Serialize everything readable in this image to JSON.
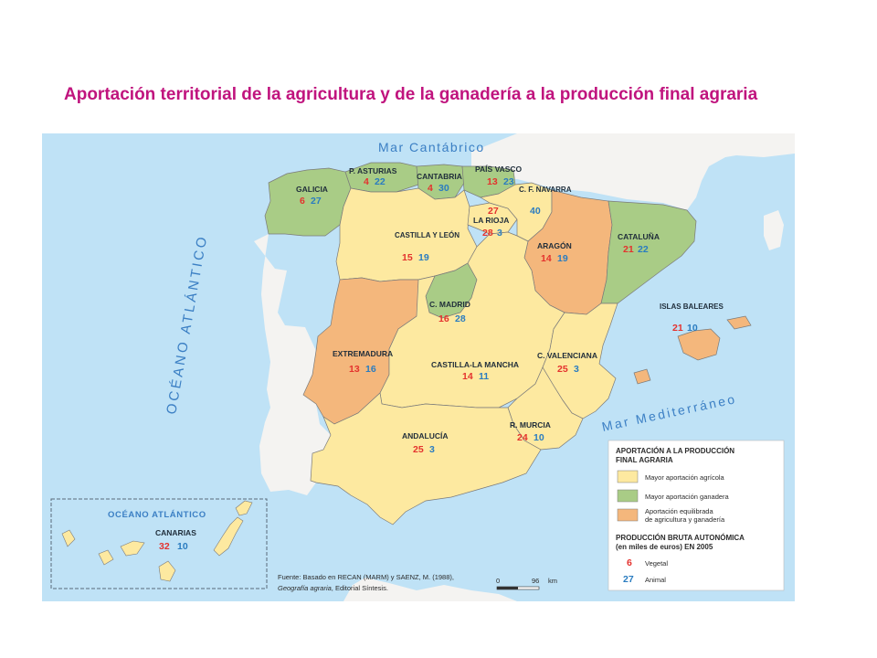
{
  "title": "Aportación territorial de la agricultura y de la ganadería a la producción final agraria",
  "colors": {
    "sea": "#bfe2f6",
    "land_other": "#f4f3f1",
    "agricola": "#fde9a0",
    "ganadera": "#a9cc86",
    "equilibrada": "#f4b77c",
    "vegetal": "#e4322e",
    "animal": "#2a7cc0"
  },
  "seas": {
    "cantabrico": "Mar Cantábrico",
    "atlantico": "OCÉANO ATLÁNTICO",
    "mediterraneo": "Mar Mediterráneo",
    "atlantico_inset": "OCÉANO ATLÁNTICO"
  },
  "regions": [
    {
      "name": "GALICIA",
      "vegetal": "6",
      "animal": "27",
      "category": "ganadera"
    },
    {
      "name": "P. ASTURIAS",
      "vegetal": "4",
      "animal": "22",
      "category": "ganadera"
    },
    {
      "name": "CANTABRIA",
      "vegetal": "4",
      "animal": "30",
      "category": "ganadera"
    },
    {
      "name": "PAÍS VASCO",
      "vegetal": "13",
      "animal": "23",
      "category": "ganadera"
    },
    {
      "name": "C. F. NAVARRA",
      "vegetal": "27",
      "animal": "40",
      "category": "agricola"
    },
    {
      "name": "LA RIOJA",
      "vegetal": "28",
      "animal": "3",
      "category": "agricola"
    },
    {
      "name": "CASTILLA Y LEÓN",
      "vegetal": "15",
      "animal": "19",
      "category": "equilibrada"
    },
    {
      "name": "ARAGÓN",
      "vegetal": "14",
      "animal": "19",
      "category": "equilibrada"
    },
    {
      "name": "CATALUÑA",
      "vegetal": "21",
      "animal": "22",
      "category": "ganadera"
    },
    {
      "name": "C. MADRID",
      "vegetal": "16",
      "animal": "28",
      "category": "ganadera"
    },
    {
      "name": "ISLAS BALEARES",
      "vegetal": "21",
      "animal": "10",
      "category": "agricola"
    },
    {
      "name": "EXTREMADURA",
      "vegetal": "13",
      "animal": "16",
      "category": "equilibrada"
    },
    {
      "name": "CASTILLA-LA MANCHA",
      "vegetal": "14",
      "animal": "11",
      "category": "agricola"
    },
    {
      "name": "C. VALENCIANA",
      "vegetal": "25",
      "animal": "3",
      "category": "agricola"
    },
    {
      "name": "R. MURCIA",
      "vegetal": "24",
      "animal": "10",
      "category": "agricola"
    },
    {
      "name": "ANDALUCÍA",
      "vegetal": "25",
      "animal": "3",
      "category": "agricola"
    },
    {
      "name": "CANARIAS",
      "vegetal": "32",
      "animal": "10",
      "category": "agricola"
    }
  ],
  "legend": {
    "title_line1": "APORTACIÓN A LA PRODUCCIÓN",
    "title_line2": "FINAL AGRARIA",
    "cat_agricola": "Mayor aportación agrícola",
    "cat_ganadera": "Mayor aportación ganadera",
    "cat_equilibrada_line1": "Aportación equilibrada",
    "cat_equilibrada_line2": "de agricultura y ganadería",
    "prod_line1": "PRODUCCIÓN BRUTA AUTONÓMICA",
    "prod_line2": "(en miles de euros) EN 2005",
    "vegetal_value": "6",
    "vegetal_label": "Vegetal",
    "animal_value": "27",
    "animal_label": "Animal"
  },
  "source": {
    "line1": "Fuente: Basado en RECAN (MARM) y SAENZ, M. (1988),",
    "line2_italic": "Geografía agraria",
    "line2_rest": ", Editorial Síntesis."
  },
  "scale": {
    "start": "0",
    "end": "96",
    "unit": "km"
  }
}
